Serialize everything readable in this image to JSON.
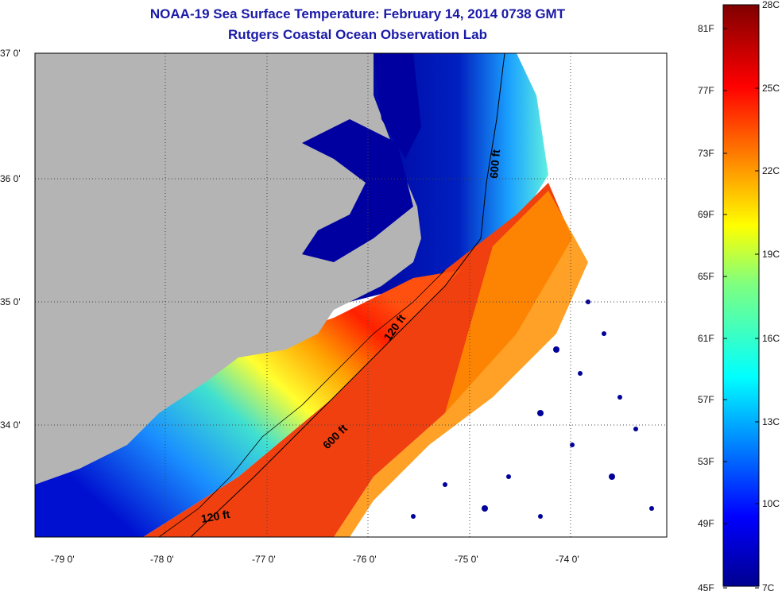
{
  "title": "NOAA-19 Sea Surface Temperature:  February 14, 2014 0738 GMT",
  "subtitle": "Rutgers Coastal Ocean Observation Lab",
  "lat_labels": [
    "37 0'",
    "36 0'",
    "35 0'",
    "34 0'"
  ],
  "lon_labels": [
    "-79 0'",
    "-78 0'",
    "-77 0'",
    "-76 0'",
    "-75 0'",
    "-74 0'"
  ],
  "isobaths": [
    {
      "label": "600 ft"
    },
    {
      "label": "120 ft"
    },
    {
      "label": "600 ft"
    },
    {
      "label": "120 ft"
    }
  ],
  "colorbar": {
    "fahrenheit": [
      "81F",
      "77F",
      "73F",
      "69F",
      "65F",
      "61F",
      "57F",
      "53F",
      "49F",
      "45F"
    ],
    "celsius": [
      "28C",
      "25C",
      "22C",
      "19C",
      "16C",
      "13C",
      "10C",
      "7C"
    ]
  },
  "colors": {
    "land": "#b4b4b4",
    "cold": "#00008f",
    "warm": "#800000",
    "title": "#1a1aa8"
  }
}
